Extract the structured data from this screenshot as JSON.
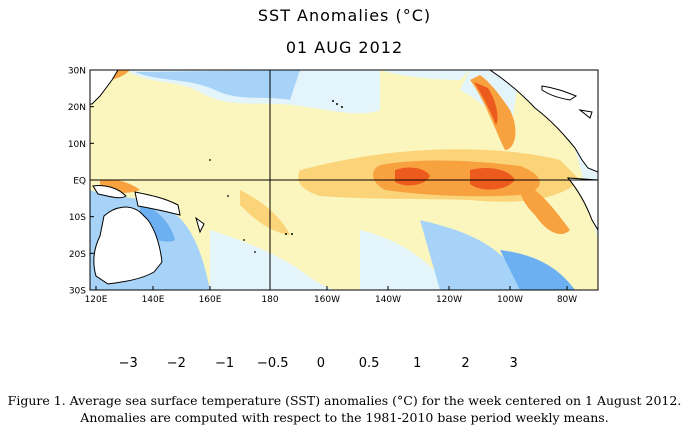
{
  "title": "SST Anomalies (°C)",
  "date": "01 AUG 2012",
  "map": {
    "lat_labels": [
      "30N",
      "20N",
      "10N",
      "EQ",
      "10S",
      "20S",
      "30S"
    ],
    "lon_labels": [
      "120E",
      "140E",
      "160E",
      "180",
      "160W",
      "140W",
      "120W",
      "100W",
      "80W"
    ],
    "lat_range": [
      -30,
      30
    ],
    "lon_range": [
      120,
      290
    ],
    "grid_lines": [
      "equator",
      "180"
    ],
    "land_color": "#ffffff",
    "coast_color": "#000000"
  },
  "colorbar": {
    "tick_labels": [
      "−3",
      "−2",
      "−1",
      "−0.5",
      "0",
      "0.5",
      "1",
      "2",
      "3"
    ],
    "colors": [
      "#1d6ed6",
      "#3c8ee8",
      "#6cb0f2",
      "#a6d3f7",
      "#e3f4fb",
      "#fbf6be",
      "#fbd47a",
      "#f7a13f",
      "#ec5a1e",
      "#c41707",
      "#8e0606"
    ]
  },
  "caption": "Figure  1. Average  sea surface  temperature  (SST)  anomalies  (°C) for the  week centered  on 1 August  2012.\nAnomalies  are computed  with  respect to the  1981-2010 base period  weekly  means."
}
